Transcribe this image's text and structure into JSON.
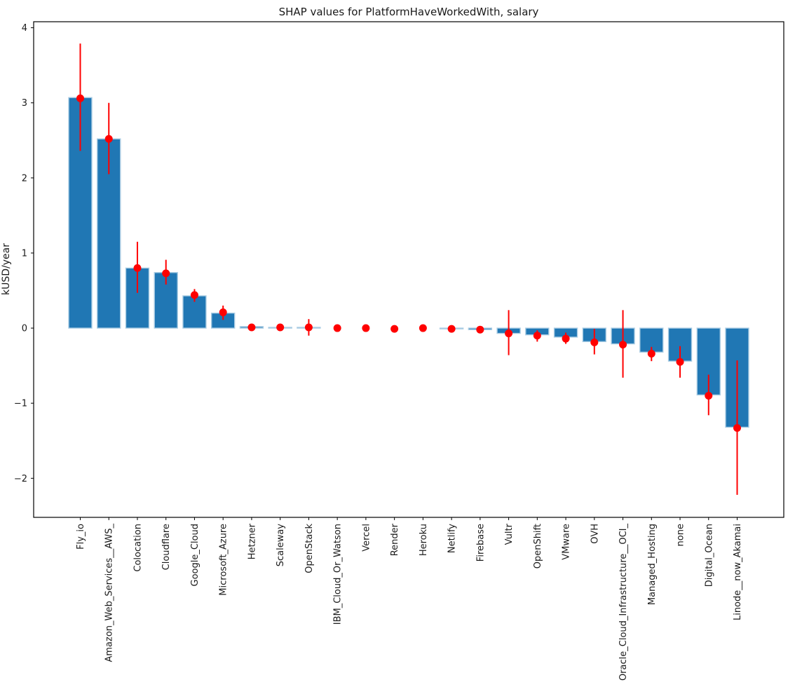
{
  "figure": {
    "background_color": "#ffffff",
    "axis_color": "#000000"
  },
  "chart_data": {
    "type": "bar",
    "title": "SHAP values for PlatformHaveWorkedWith, salary",
    "xlabel": "",
    "ylabel": "kUSD/year",
    "ylim": [
      -2.52,
      4.08
    ],
    "yticks": [
      4,
      3,
      2,
      1,
      0,
      -1,
      -2
    ],
    "grid": false,
    "legend": null,
    "colors": {
      "bar_fill": "#2077b4",
      "bar_edge": "#a9cce3",
      "error_bar": "#ff0000",
      "point_marker": "#ff0000"
    },
    "categories": [
      "Fly_io",
      "Amazon_Web_Services__AWS_",
      "Colocation",
      "Cloudflare",
      "Google_Cloud",
      "Microsoft_Azure",
      "Hetzner",
      "Scaleway",
      "OpenStack",
      "IBM_Cloud_Or_Watson",
      "Vercel",
      "Render",
      "Heroku",
      "Netlify",
      "Firebase",
      "Vultr",
      "OpenShift",
      "VMware",
      "OVH",
      "Oracle_Cloud_Infrastructure__OCI_",
      "Managed_Hosting",
      "none",
      "Digital_Ocean",
      "Linode__now_Akamai"
    ],
    "values": [
      3.07,
      2.52,
      0.8,
      0.74,
      0.43,
      0.2,
      0.02,
      0.01,
      0.01,
      0.0,
      0.0,
      0.0,
      0.0,
      -0.01,
      -0.02,
      -0.07,
      -0.09,
      -0.12,
      -0.18,
      -0.21,
      -0.32,
      -0.44,
      -0.89,
      -1.32
    ],
    "point_values": [
      3.06,
      2.52,
      0.8,
      0.73,
      0.44,
      0.21,
      0.01,
      0.01,
      0.01,
      0.0,
      0.0,
      -0.01,
      0.0,
      -0.01,
      -0.02,
      -0.07,
      -0.1,
      -0.14,
      -0.19,
      -0.22,
      -0.34,
      -0.45,
      -0.9,
      -1.33
    ],
    "err_low": [
      2.36,
      2.05,
      0.47,
      0.58,
      0.35,
      0.11,
      0.0,
      0.0,
      -0.1,
      0.0,
      0.0,
      -0.01,
      0.0,
      -0.02,
      -0.04,
      -0.36,
      -0.18,
      -0.21,
      -0.35,
      -0.66,
      -0.44,
      -0.66,
      -1.16,
      -2.22
    ],
    "err_high": [
      3.79,
      3.0,
      1.15,
      0.91,
      0.52,
      0.3,
      0.02,
      0.02,
      0.12,
      0.0,
      0.0,
      0.0,
      0.0,
      0.0,
      0.0,
      0.24,
      -0.03,
      -0.06,
      -0.01,
      0.24,
      -0.25,
      -0.24,
      -0.62,
      -0.43
    ]
  }
}
